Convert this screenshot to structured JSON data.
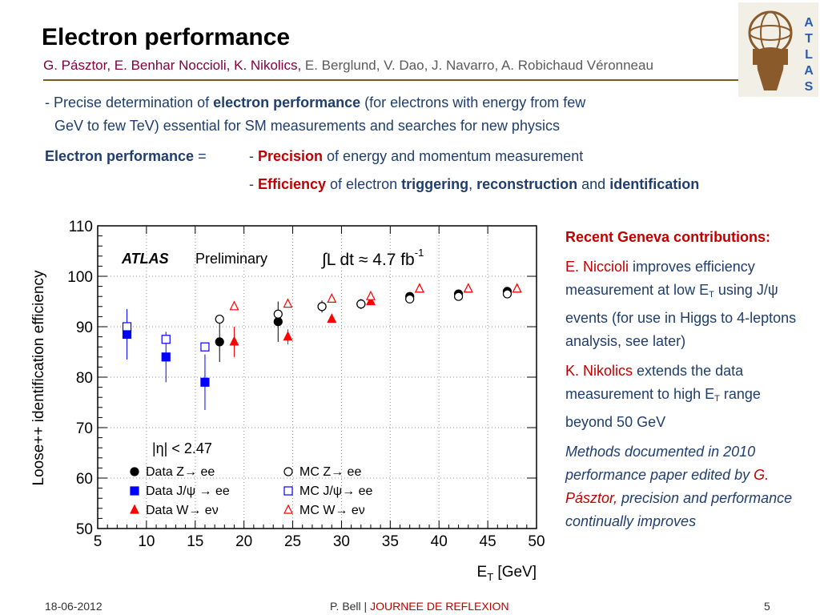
{
  "header": {
    "title": "Electron performance",
    "authors_primary": "G. Pásztor, E. Benhar Noccioli, K. Nikolics,",
    "authors_secondary": " E. Berglund, V. Dao, J. Navarro, A. Robichaud Véronneau",
    "logo_letters": [
      "A",
      "T",
      "L",
      "A",
      "S"
    ]
  },
  "intro": {
    "prefix": "- Precise determination of ",
    "bold": "electron performance",
    "suffix": " (for electrons with energy from few",
    "line2": "GeV to few TeV) essential for SM measurements and searches for new physics"
  },
  "definition": {
    "label_bold": "Electron performance",
    "label_eq": " =",
    "line1_dash": "- ",
    "line1_red": "Precision",
    "line1_rest": " of energy and momentum measurement",
    "line2_dash": "- ",
    "line2_red": "Efficiency",
    "line2_mid": " of electron ",
    "line2_b1": "triggering",
    "line2_sep": ",  ",
    "line2_b2": "reconstruction",
    "line2_and": " and ",
    "line2_b3": "identification"
  },
  "side": {
    "header": "Recent Geneva contributions:",
    "p1_name": "E. Niccioli",
    "p1_text_a": " improves efficiency measurement at low E",
    "p1_sub": "T",
    "p1_text_b": " using J/ψ events (for use in Higgs to 4-leptons analysis, see later)",
    "p2_name": "K. Nikolics",
    "p2_text_a": " extends the data measurement to high E",
    "p2_sub": "T",
    "p2_text_b": " range beyond 50 GeV",
    "p3_a": "Methods documented in 2010 performance paper edited by ",
    "p3_name": "G. Pásztor,",
    "p3_b": " precision and performance continually improves"
  },
  "footer": {
    "date": "18-06-2012",
    "author": "P. Bell  |  ",
    "conference": "JOURNEE DE REFLEXION",
    "page": "5"
  },
  "chart_data": {
    "type": "scatter",
    "xlabel": "E",
    "xlabel_sub": "T",
    "xlabel_unit": " [GeV]",
    "ylabel": "Loose++ identification efficiency",
    "xlim": [
      5,
      50
    ],
    "ylim": [
      50,
      110
    ],
    "xticks": [
      "5",
      "10",
      "15",
      "20",
      "25",
      "30",
      "35",
      "40",
      "45",
      "50"
    ],
    "yticks": [
      "50",
      "60",
      "70",
      "80",
      "90",
      "100",
      "110"
    ],
    "annotations": {
      "atlas": "ATLAS",
      "preliminary": "Preliminary",
      "lumi": "∫L dt ≈ 4.7 fb",
      "lumi_exp": "-1",
      "eta_cut": "|η| < 2.47"
    },
    "colors": {
      "black": "#000000",
      "blue": "#0000ff",
      "red": "#ff0000"
    },
    "series": [
      {
        "name": "Data Z→ ee",
        "marker": "circle-filled",
        "color": "#000000",
        "x": [
          17.5,
          23.5,
          28,
          32,
          37,
          42,
          47
        ],
        "y": [
          87,
          91,
          94,
          94.5,
          96,
          96.5,
          97
        ],
        "yerr": [
          4,
          4,
          1.2,
          1,
          0.8,
          0.8,
          0.8
        ]
      },
      {
        "name": "MC Z→ ee",
        "marker": "circle-open",
        "color": "#000000",
        "x": [
          17.5,
          23.5,
          28,
          32,
          37,
          42,
          47
        ],
        "y": [
          91.5,
          92.5,
          94,
          94.5,
          95.5,
          96,
          96.5
        ],
        "yerr": [
          0,
          0,
          0,
          0,
          0,
          0,
          0
        ]
      },
      {
        "name": "Data J/ψ → ee",
        "marker": "square-filled",
        "color": "#0000ff",
        "x": [
          8,
          12,
          16
        ],
        "y": [
          88.5,
          84,
          79
        ],
        "yerr": [
          5,
          5,
          5.5
        ]
      },
      {
        "name": "MC J/ψ→ ee",
        "marker": "square-open",
        "color": "#0000ff",
        "x": [
          8,
          12,
          16
        ],
        "y": [
          90,
          87.5,
          86
        ],
        "yerr": [
          0,
          0,
          0
        ]
      },
      {
        "name": "Data W→ eν",
        "marker": "triangle-filled",
        "color": "#ff0000",
        "x": [
          19,
          24.5,
          29,
          33,
          38,
          43,
          48
        ],
        "y": [
          87,
          88,
          91.5,
          95,
          97.5,
          97.5,
          97.5
        ],
        "yerr": [
          3,
          1.5,
          0.5,
          0.5,
          0.5,
          0.5,
          0.5
        ]
      },
      {
        "name": "MC W→ eν",
        "marker": "triangle-open",
        "color": "#ff0000",
        "x": [
          19,
          24.5,
          29,
          33,
          38,
          43,
          48
        ],
        "y": [
          94,
          94.5,
          95.5,
          96,
          97.5,
          97.5,
          97.5
        ],
        "yerr": [
          0,
          0,
          0,
          0,
          0,
          0,
          0
        ]
      }
    ]
  }
}
